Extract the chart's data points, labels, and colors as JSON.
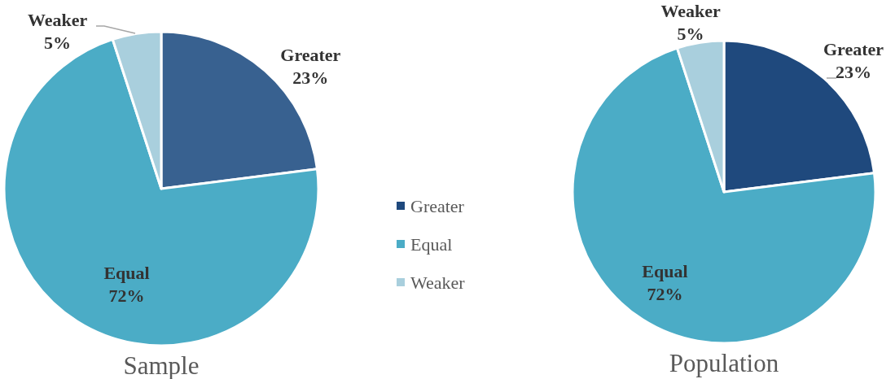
{
  "chart_data": [
    {
      "type": "pie",
      "title": "Sample",
      "categories": [
        "Greater",
        "Equal",
        "Weaker"
      ],
      "values": [
        23,
        72,
        5
      ],
      "colors": [
        "#386190",
        "#4bacc6",
        "#a9cfdd"
      ],
      "value_labels": [
        "23%",
        "72%",
        "5%"
      ],
      "legend": false
    },
    {
      "type": "pie",
      "title": "Population",
      "categories": [
        "Greater",
        "Equal",
        "Weaker"
      ],
      "values": [
        23,
        72,
        5
      ],
      "colors": [
        "#1f497d",
        "#4bacc6",
        "#a9cfdd"
      ],
      "value_labels": [
        "23%",
        "72%",
        "5%"
      ],
      "legend": "left"
    }
  ]
}
